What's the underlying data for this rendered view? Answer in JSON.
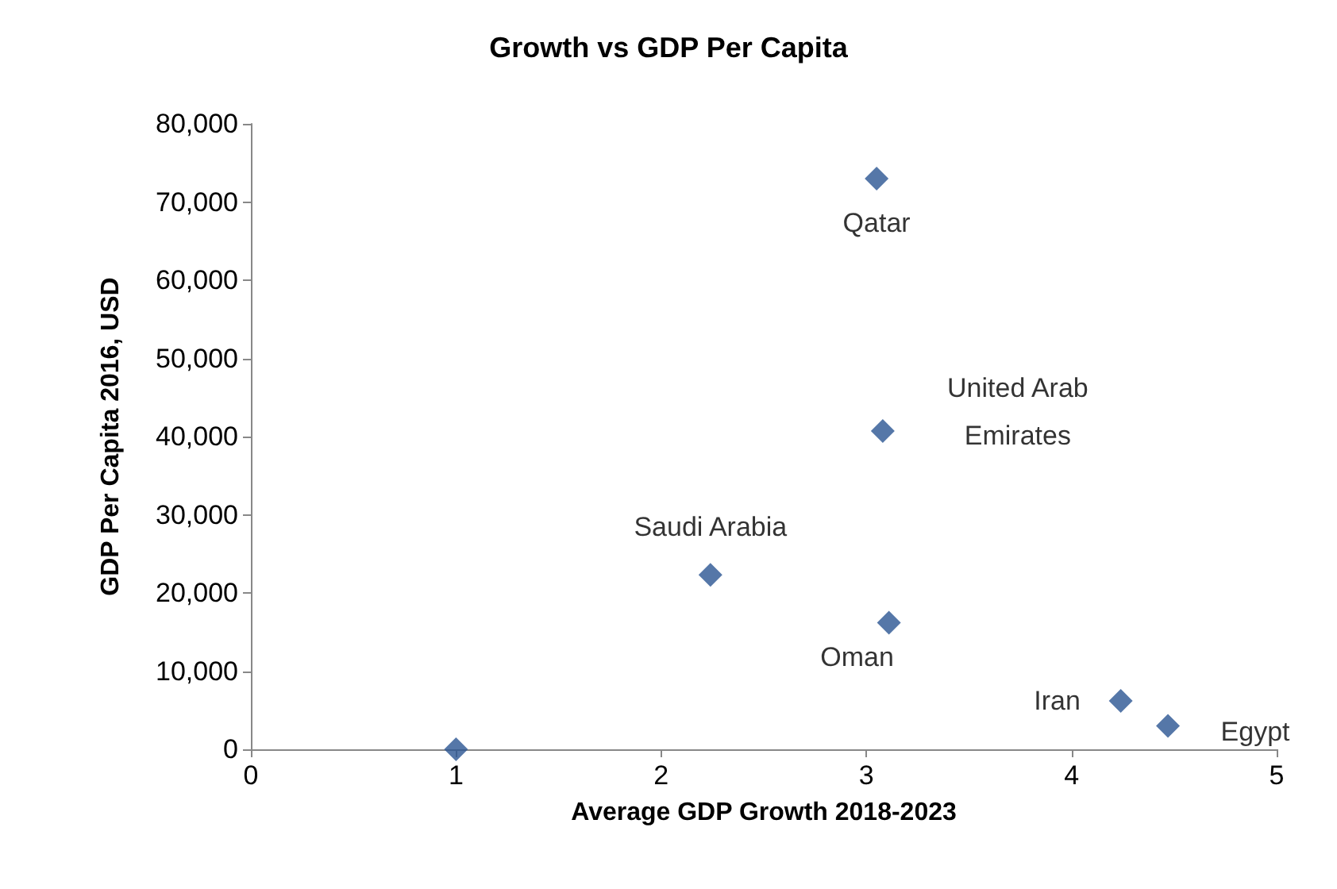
{
  "chart_data": {
    "type": "scatter",
    "title": "Growth vs GDP Per Capita",
    "xlabel": "Average GDP Growth 2018-2023",
    "ylabel": "GDP Per Capita 2016, USD",
    "x": [
      1,
      2.24,
      3.05,
      3.08,
      3.11,
      4.24,
      4.47
    ],
    "series": [
      {
        "color": "#2a5592",
        "values": [
          0,
          22300,
          73000,
          40700,
          16200,
          6200,
          3000
        ]
      }
    ],
    "annotations": [
      {
        "text": "Saudi Arabia",
        "x": 2.24,
        "y": 22300
      },
      {
        "text": "Qatar",
        "x": 3.05,
        "y": 73000
      },
      {
        "text": "United Arab\nEmirates",
        "x": 3.08,
        "y": 40700
      },
      {
        "text": "Oman",
        "x": 3.11,
        "y": 16200
      },
      {
        "text": "Iran",
        "x": 4.24,
        "y": 6200
      },
      {
        "text": "Egypt",
        "x": 4.47,
        "y": 3000
      }
    ],
    "xlim": [
      0,
      5
    ],
    "xticks": [
      0,
      1,
      2,
      3,
      4,
      5
    ],
    "ylim": [
      0,
      80000
    ],
    "yticks": [
      0,
      {
        "value": 10000,
        "label": "10,000"
      },
      {
        "value": 20000,
        "label": "20,000"
      },
      {
        "value": 30000,
        "label": "30,000"
      },
      {
        "value": 40000,
        "label": "40,000"
      },
      {
        "value": 50000,
        "label": "50,000"
      },
      {
        "value": 60000,
        "label": "60,000"
      },
      {
        "value": 70000,
        "label": "70,000"
      },
      {
        "value": 80000,
        "label": "80,000"
      }
    ],
    "grid": false,
    "marker": "diamond"
  }
}
